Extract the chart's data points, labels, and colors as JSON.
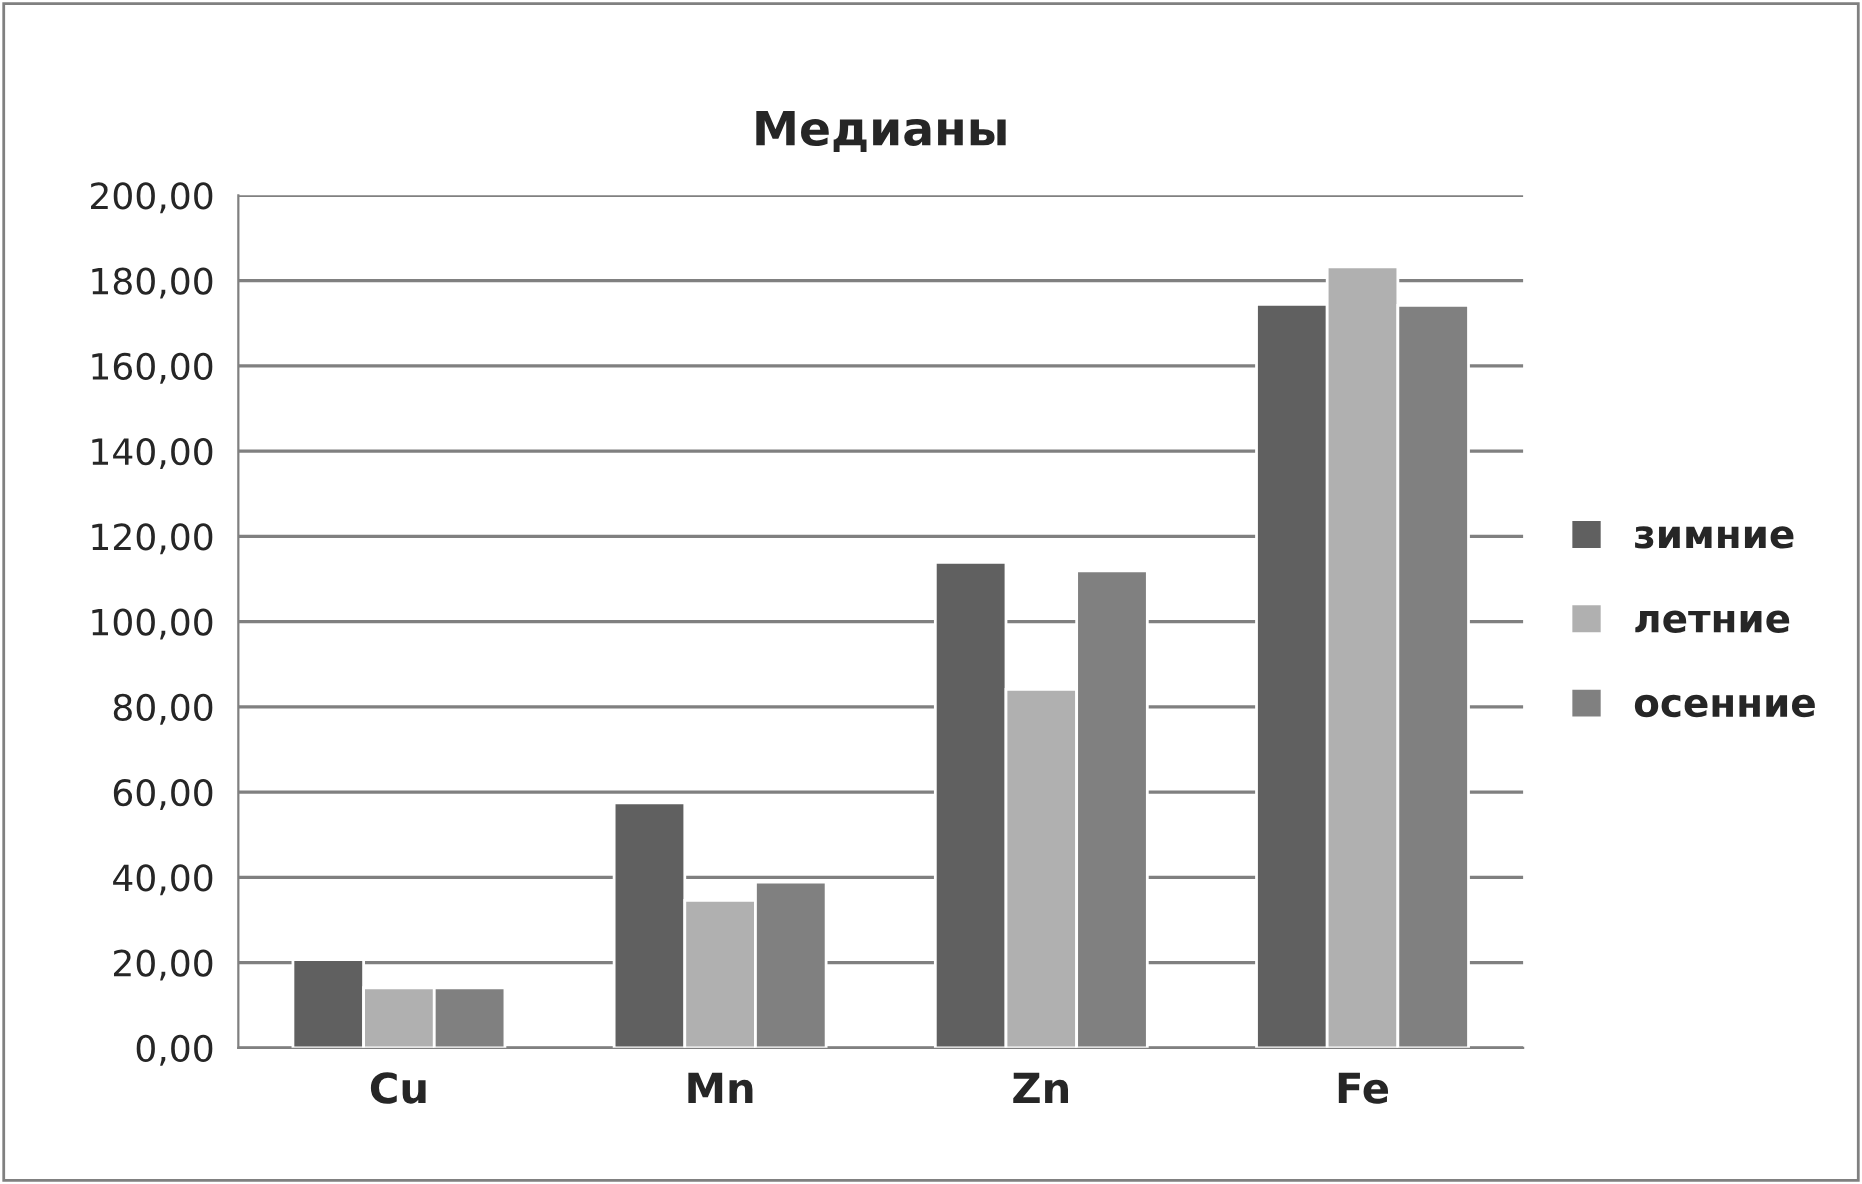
{
  "chart_data": {
    "type": "bar",
    "title": "Медианы",
    "categories": [
      "Cu",
      "Mn",
      "Zn",
      "Fe"
    ],
    "series": [
      {
        "name": "зимние",
        "color": "#606060",
        "values": [
          20.7,
          57.5,
          113.9,
          174.4
        ]
      },
      {
        "name": "летние",
        "color": "#b0b0b0",
        "values": [
          14.1,
          34.6,
          84.1,
          183.2
        ]
      },
      {
        "name": "осенние",
        "color": "#808080",
        "values": [
          14.1,
          38.9,
          111.9,
          174.2
        ]
      }
    ],
    "ylim": [
      0,
      200
    ],
    "yticks": [
      {
        "value": 0,
        "label": "0,00"
      },
      {
        "value": 20,
        "label": "20,00"
      },
      {
        "value": 40,
        "label": "40,00"
      },
      {
        "value": 60,
        "label": "60,00"
      },
      {
        "value": 80,
        "label": "80,00"
      },
      {
        "value": 100,
        "label": "100,00"
      },
      {
        "value": 120,
        "label": "120,00"
      },
      {
        "value": 140,
        "label": "140,00"
      },
      {
        "value": 160,
        "label": "160,00"
      },
      {
        "value": 180,
        "label": "180,00"
      },
      {
        "value": 200,
        "label": "200,00"
      }
    ],
    "grid": "y",
    "legend": "right"
  }
}
